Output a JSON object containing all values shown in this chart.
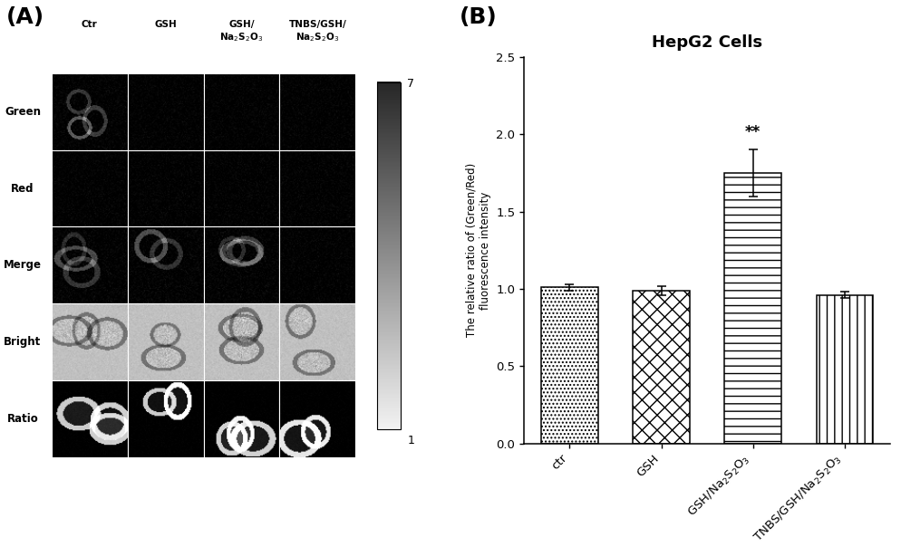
{
  "title_A": "(A)",
  "title_B": "(B)",
  "chart_title": "HepG2 Cells",
  "ylabel": "The relative ratio of (Green/Red)\nfluorescence intensity",
  "bar_values": [
    1.01,
    0.99,
    1.75,
    0.96
  ],
  "bar_errors": [
    0.02,
    0.03,
    0.15,
    0.02
  ],
  "significance_label": "**",
  "significance_bar_idx": 2,
  "ylim": [
    0,
    2.5
  ],
  "yticks": [
    0.0,
    0.5,
    1.0,
    1.5,
    2.0,
    2.5
  ],
  "row_labels": [
    "Green",
    "Red",
    "Merge",
    "Bright",
    "Ratio"
  ],
  "col_labels": [
    "Ctr",
    "GSH",
    "GSH/\nNa$_2$S$_2$O$_3$",
    "TNBS/GSH/\nNa$_2$S$_2$O$_3$"
  ],
  "colorbar_min": 1,
  "colorbar_max": 7,
  "background_color": "#ffffff",
  "n_rows": 5,
  "n_cols": 4
}
